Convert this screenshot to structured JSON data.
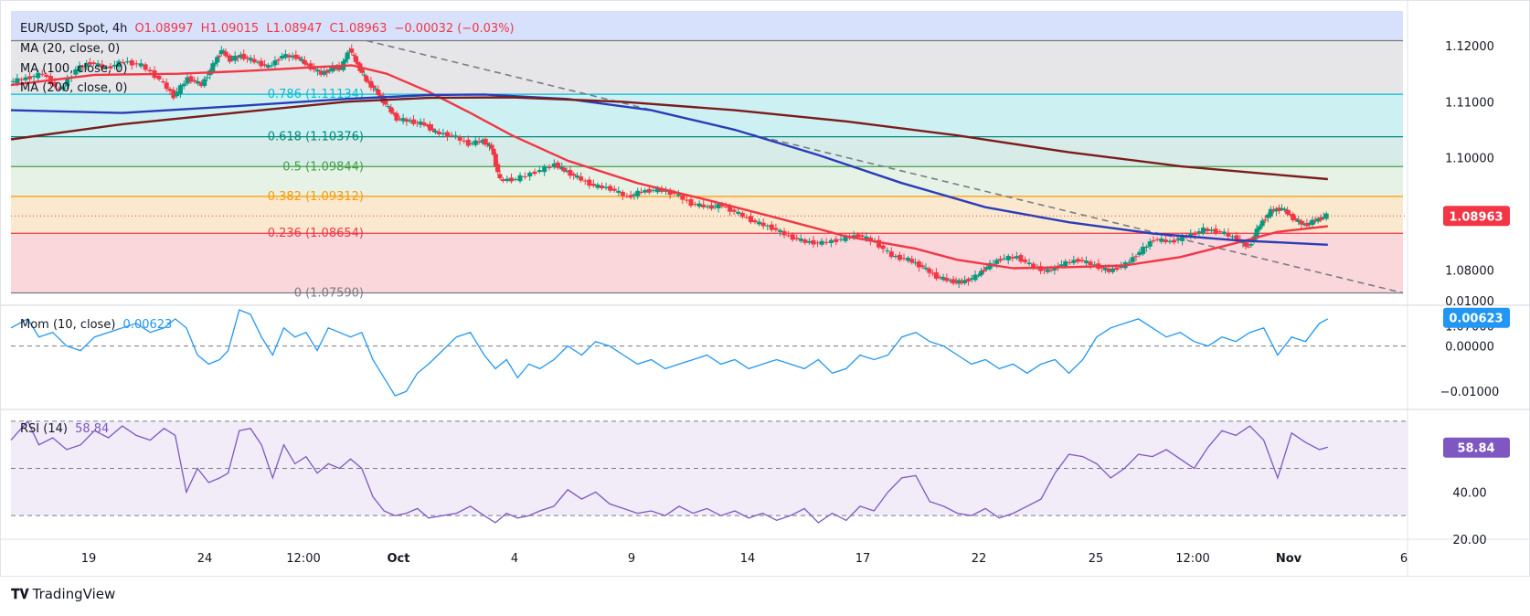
{
  "header": {
    "symbol": "EUR/USD Spot, 4h",
    "open": "O1.08997",
    "high": "H1.09015",
    "low": "L1.08947",
    "close": "C1.08963",
    "change": "−0.00032 (−0.03%)",
    "ma20_label": "MA (20, close, 0)",
    "ma100_label": "MA (100, close, 0)",
    "ma200_label": "MA (200, close, 0)",
    "mom_label": "Mom (10, close)",
    "mom_value": "0.00623",
    "rsi_label": "RSI (14)",
    "rsi_value": "58.84"
  },
  "brand": "TradingView",
  "colors": {
    "up": "#089981",
    "down": "#f23645",
    "ma20": "#f23645",
    "ma100": "#2a3db8",
    "ma200": "#7b1c1c",
    "mom": "#2196f3",
    "rsi": "#7e57c2",
    "price_badge": "#f23645",
    "mom_badge": "#2196f3",
    "rsi_badge": "#7e57c2"
  },
  "chart_data": [
    {
      "type": "candlestick",
      "title": "EUR/USD Spot, 4h",
      "x_ticks": [
        "19",
        "24",
        "12:00",
        "Oct",
        "4",
        "9",
        "14",
        "17",
        "22",
        "25",
        "12:00",
        "Nov",
        "6"
      ],
      "y_ticks": [
        "1.12000",
        "1.11000",
        "1.10000",
        "1.09000",
        "1.08000",
        "1.07000"
      ],
      "ylim": [
        1.0737,
        1.1262
      ],
      "last_price": "1.08963",
      "fibonacci": {
        "from": 1.1209,
        "to": 1.0759,
        "levels": [
          {
            "ratio_label": "1",
            "price": 1.1209,
            "text": ""
          },
          {
            "ratio_label": "0.786",
            "price": 1.11134,
            "text": "0.786 (1.11134)"
          },
          {
            "ratio_label": "0.618",
            "price": 1.10376,
            "text": "0.618 (1.10376)"
          },
          {
            "ratio_label": "0.5",
            "price": 1.09844,
            "text": "0.5 (1.09844)"
          },
          {
            "ratio_label": "0.382",
            "price": 1.09312,
            "text": "0.382 (1.09312)"
          },
          {
            "ratio_label": "0.236",
            "price": 1.08654,
            "text": "0.236 (1.08654)"
          },
          {
            "ratio_label": "0",
            "price": 1.0759,
            "text": "0 (1.07590)"
          }
        ]
      },
      "trendline": {
        "from": [
          0.245,
          1.1209
        ],
        "to": [
          1.0,
          1.0759
        ]
      },
      "price_path": [
        [
          0.0,
          1.1135
        ],
        [
          0.012,
          1.1142
        ],
        [
          0.024,
          1.115
        ],
        [
          0.036,
          1.112
        ],
        [
          0.048,
          1.1158
        ],
        [
          0.058,
          1.117
        ],
        [
          0.07,
          1.116
        ],
        [
          0.082,
          1.1172
        ],
        [
          0.095,
          1.1165
        ],
        [
          0.108,
          1.114
        ],
        [
          0.118,
          1.111
        ],
        [
          0.128,
          1.1142
        ],
        [
          0.138,
          1.113
        ],
        [
          0.146,
          1.1165
        ],
        [
          0.152,
          1.1192
        ],
        [
          0.158,
          1.1175
        ],
        [
          0.166,
          1.1182
        ],
        [
          0.176,
          1.1172
        ],
        [
          0.186,
          1.1162
        ],
        [
          0.196,
          1.1182
        ],
        [
          0.206,
          1.118
        ],
        [
          0.214,
          1.1165
        ],
        [
          0.224,
          1.115
        ],
        [
          0.232,
          1.116
        ],
        [
          0.238,
          1.116
        ],
        [
          0.244,
          1.1195
        ],
        [
          0.25,
          1.1165
        ],
        [
          0.256,
          1.1138
        ],
        [
          0.263,
          1.112
        ],
        [
          0.27,
          1.1095
        ],
        [
          0.278,
          1.107
        ],
        [
          0.288,
          1.1065
        ],
        [
          0.298,
          1.106
        ],
        [
          0.306,
          1.1045
        ],
        [
          0.318,
          1.104
        ],
        [
          0.33,
          1.1025
        ],
        [
          0.34,
          1.103
        ],
        [
          0.346,
          1.1018
        ],
        [
          0.352,
          1.096
        ],
        [
          0.364,
          1.0962
        ],
        [
          0.378,
          1.0975
        ],
        [
          0.392,
          1.0988
        ],
        [
          0.398,
          1.0978
        ],
        [
          0.408,
          1.0965
        ],
        [
          0.42,
          1.095
        ],
        [
          0.432,
          1.0945
        ],
        [
          0.444,
          1.093
        ],
        [
          0.454,
          1.094
        ],
        [
          0.466,
          1.0943
        ],
        [
          0.478,
          1.0936
        ],
        [
          0.49,
          1.0918
        ],
        [
          0.502,
          1.0912
        ],
        [
          0.512,
          1.0915
        ],
        [
          0.524,
          1.09
        ],
        [
          0.536,
          1.0885
        ],
        [
          0.548,
          1.0875
        ],
        [
          0.56,
          1.086
        ],
        [
          0.572,
          1.085
        ],
        [
          0.584,
          1.0848
        ],
        [
          0.598,
          1.0855
        ],
        [
          0.61,
          1.0862
        ],
        [
          0.622,
          1.085
        ],
        [
          0.634,
          1.0825
        ],
        [
          0.646,
          1.0818
        ],
        [
          0.656,
          1.0805
        ],
        [
          0.666,
          1.0788
        ],
        [
          0.676,
          1.078
        ],
        [
          0.684,
          1.0778
        ],
        [
          0.694,
          1.0788
        ],
        [
          0.702,
          1.0805
        ],
        [
          0.712,
          1.082
        ],
        [
          0.724,
          1.0823
        ],
        [
          0.736,
          1.0805
        ],
        [
          0.746,
          1.0798
        ],
        [
          0.756,
          1.081
        ],
        [
          0.768,
          1.0818
        ],
        [
          0.78,
          1.0808
        ],
        [
          0.79,
          1.0798
        ],
        [
          0.802,
          1.081
        ],
        [
          0.812,
          1.0832
        ],
        [
          0.822,
          1.0855
        ],
        [
          0.834,
          1.085
        ],
        [
          0.846,
          1.086
        ],
        [
          0.858,
          1.0872
        ],
        [
          0.87,
          1.0868
        ],
        [
          0.882,
          1.0855
        ],
        [
          0.89,
          1.084
        ],
        [
          0.898,
          1.088
        ],
        [
          0.906,
          1.0905
        ],
        [
          0.914,
          1.091
        ],
        [
          0.922,
          1.0892
        ],
        [
          0.93,
          1.088
        ],
        [
          0.938,
          1.0888
        ],
        [
          0.946,
          1.0897
        ]
      ],
      "ma_series": [
        {
          "name": "MA (20, close, 0)",
          "color": "#f23645",
          "points": [
            [
              0.0,
              1.113
            ],
            [
              0.06,
              1.1148
            ],
            [
              0.12,
              1.115
            ],
            [
              0.17,
              1.1155
            ],
            [
              0.22,
              1.1162
            ],
            [
              0.245,
              1.1165
            ],
            [
              0.27,
              1.115
            ],
            [
              0.3,
              1.1118
            ],
            [
              0.33,
              1.108
            ],
            [
              0.36,
              1.104
            ],
            [
              0.4,
              1.0995
            ],
            [
              0.45,
              1.0955
            ],
            [
              0.5,
              1.0925
            ],
            [
              0.55,
              1.0893
            ],
            [
              0.6,
              1.086
            ],
            [
              0.65,
              1.0838
            ],
            [
              0.68,
              1.0818
            ],
            [
              0.72,
              1.0803
            ],
            [
              0.76,
              1.0805
            ],
            [
              0.8,
              1.0808
            ],
            [
              0.84,
              1.0823
            ],
            [
              0.88,
              1.0848
            ],
            [
              0.91,
              1.0868
            ],
            [
              0.946,
              1.0878
            ]
          ]
        },
        {
          "name": "MA (100, close, 0)",
          "color": "#2a3db8",
          "points": [
            [
              0.0,
              1.1085
            ],
            [
              0.08,
              1.108
            ],
            [
              0.16,
              1.1092
            ],
            [
              0.24,
              1.1105
            ],
            [
              0.3,
              1.1112
            ],
            [
              0.34,
              1.1113
            ],
            [
              0.4,
              1.1105
            ],
            [
              0.46,
              1.1085
            ],
            [
              0.52,
              1.105
            ],
            [
              0.58,
              1.1005
            ],
            [
              0.64,
              1.0955
            ],
            [
              0.7,
              1.0912
            ],
            [
              0.76,
              1.0885
            ],
            [
              0.82,
              1.0865
            ],
            [
              0.88,
              1.0853
            ],
            [
              0.946,
              1.0845
            ]
          ]
        },
        {
          "name": "MA (200, close, 0)",
          "color": "#7b1c1c",
          "points": [
            [
              0.0,
              1.1033
            ],
            [
              0.08,
              1.106
            ],
            [
              0.16,
              1.108
            ],
            [
              0.24,
              1.11
            ],
            [
              0.3,
              1.1107
            ],
            [
              0.36,
              1.1108
            ],
            [
              0.44,
              1.11
            ],
            [
              0.52,
              1.1085
            ],
            [
              0.6,
              1.1065
            ],
            [
              0.68,
              1.104
            ],
            [
              0.76,
              1.101
            ],
            [
              0.84,
              1.0985
            ],
            [
              0.9,
              1.0972
            ],
            [
              0.946,
              1.0962
            ]
          ]
        }
      ]
    },
    {
      "type": "line",
      "title": "Mom (10, close)",
      "y_ticks": [
        "0.01000",
        "0.00000",
        "−0.01000"
      ],
      "ylim": [
        -0.014,
        0.009
      ],
      "last_value": "0.00623",
      "zero_line": 0,
      "x": [
        0.0,
        0.012,
        0.02,
        0.03,
        0.04,
        0.05,
        0.06,
        0.07,
        0.08,
        0.09,
        0.1,
        0.11,
        0.118,
        0.126,
        0.134,
        0.142,
        0.15,
        0.156,
        0.164,
        0.172,
        0.18,
        0.188,
        0.196,
        0.204,
        0.212,
        0.22,
        0.228,
        0.236,
        0.244,
        0.252,
        0.26,
        0.268,
        0.276,
        0.284,
        0.292,
        0.3,
        0.31,
        0.32,
        0.33,
        0.34,
        0.348,
        0.356,
        0.364,
        0.372,
        0.38,
        0.39,
        0.4,
        0.41,
        0.42,
        0.43,
        0.44,
        0.45,
        0.46,
        0.47,
        0.48,
        0.49,
        0.5,
        0.51,
        0.52,
        0.53,
        0.54,
        0.55,
        0.56,
        0.57,
        0.58,
        0.59,
        0.6,
        0.61,
        0.62,
        0.63,
        0.64,
        0.65,
        0.66,
        0.67,
        0.68,
        0.69,
        0.7,
        0.71,
        0.72,
        0.73,
        0.74,
        0.75,
        0.76,
        0.77,
        0.78,
        0.79,
        0.8,
        0.81,
        0.82,
        0.83,
        0.84,
        0.85,
        0.86,
        0.87,
        0.88,
        0.89,
        0.9,
        0.91,
        0.92,
        0.93,
        0.94,
        0.946
      ],
      "values": [
        0.004,
        0.006,
        0.002,
        0.003,
        0.0,
        -0.001,
        0.002,
        0.003,
        0.004,
        0.005,
        0.003,
        0.004,
        0.006,
        0.004,
        -0.002,
        -0.004,
        -0.003,
        -0.001,
        0.008,
        0.007,
        0.002,
        -0.002,
        0.004,
        0.002,
        0.003,
        -0.001,
        0.004,
        0.003,
        0.002,
        0.003,
        -0.003,
        -0.007,
        -0.011,
        -0.01,
        -0.006,
        -0.004,
        -0.001,
        0.002,
        0.003,
        -0.002,
        -0.005,
        -0.003,
        -0.007,
        -0.004,
        -0.005,
        -0.003,
        0.0,
        -0.002,
        0.001,
        0.0,
        -0.002,
        -0.004,
        -0.003,
        -0.005,
        -0.004,
        -0.003,
        -0.002,
        -0.004,
        -0.003,
        -0.005,
        -0.004,
        -0.003,
        -0.004,
        -0.005,
        -0.003,
        -0.006,
        -0.005,
        -0.002,
        -0.003,
        -0.002,
        0.002,
        0.003,
        0.001,
        0.0,
        -0.002,
        -0.004,
        -0.003,
        -0.005,
        -0.004,
        -0.006,
        -0.004,
        -0.003,
        -0.006,
        -0.003,
        0.002,
        0.004,
        0.005,
        0.006,
        0.004,
        0.002,
        0.003,
        0.001,
        0.0,
        0.002,
        0.001,
        0.003,
        0.004,
        -0.002,
        0.002,
        0.001,
        0.005,
        0.006
      ]
    },
    {
      "type": "line",
      "title": "RSI (14)",
      "y_ticks": [
        "40.00",
        "20.00"
      ],
      "ylim": [
        20,
        75
      ],
      "bands": [
        70,
        50,
        30
      ],
      "last_value": "58.84",
      "x": [
        0.0,
        0.012,
        0.02,
        0.03,
        0.04,
        0.05,
        0.06,
        0.07,
        0.08,
        0.09,
        0.1,
        0.11,
        0.118,
        0.126,
        0.134,
        0.142,
        0.15,
        0.156,
        0.164,
        0.172,
        0.18,
        0.188,
        0.196,
        0.204,
        0.212,
        0.22,
        0.228,
        0.236,
        0.244,
        0.252,
        0.26,
        0.268,
        0.276,
        0.284,
        0.292,
        0.3,
        0.31,
        0.32,
        0.33,
        0.34,
        0.348,
        0.356,
        0.364,
        0.372,
        0.38,
        0.39,
        0.4,
        0.41,
        0.42,
        0.43,
        0.44,
        0.45,
        0.46,
        0.47,
        0.48,
        0.49,
        0.5,
        0.51,
        0.52,
        0.53,
        0.54,
        0.55,
        0.56,
        0.57,
        0.58,
        0.59,
        0.6,
        0.61,
        0.62,
        0.63,
        0.64,
        0.65,
        0.66,
        0.67,
        0.68,
        0.69,
        0.7,
        0.71,
        0.72,
        0.73,
        0.74,
        0.75,
        0.76,
        0.77,
        0.78,
        0.79,
        0.8,
        0.81,
        0.82,
        0.83,
        0.84,
        0.85,
        0.86,
        0.87,
        0.88,
        0.89,
        0.9,
        0.91,
        0.92,
        0.93,
        0.94,
        0.946
      ],
      "values": [
        62,
        70,
        60,
        63,
        58,
        60,
        66,
        63,
        68,
        64,
        62,
        67,
        64,
        40,
        50,
        44,
        46,
        48,
        66,
        67,
        60,
        46,
        60,
        52,
        55,
        48,
        52,
        50,
        54,
        50,
        38,
        32,
        30,
        31,
        33,
        29,
        30,
        31,
        34,
        30,
        27,
        31,
        29,
        30,
        32,
        34,
        41,
        37,
        40,
        35,
        33,
        31,
        32,
        30,
        34,
        31,
        33,
        30,
        32,
        29,
        31,
        28,
        30,
        33,
        27,
        31,
        28,
        34,
        32,
        40,
        46,
        47,
        36,
        34,
        31,
        30,
        33,
        29,
        31,
        34,
        37,
        48,
        56,
        55,
        52,
        46,
        50,
        56,
        55,
        58,
        54,
        50,
        59,
        66,
        64,
        68,
        62,
        46,
        65,
        61,
        58,
        59
      ]
    }
  ]
}
